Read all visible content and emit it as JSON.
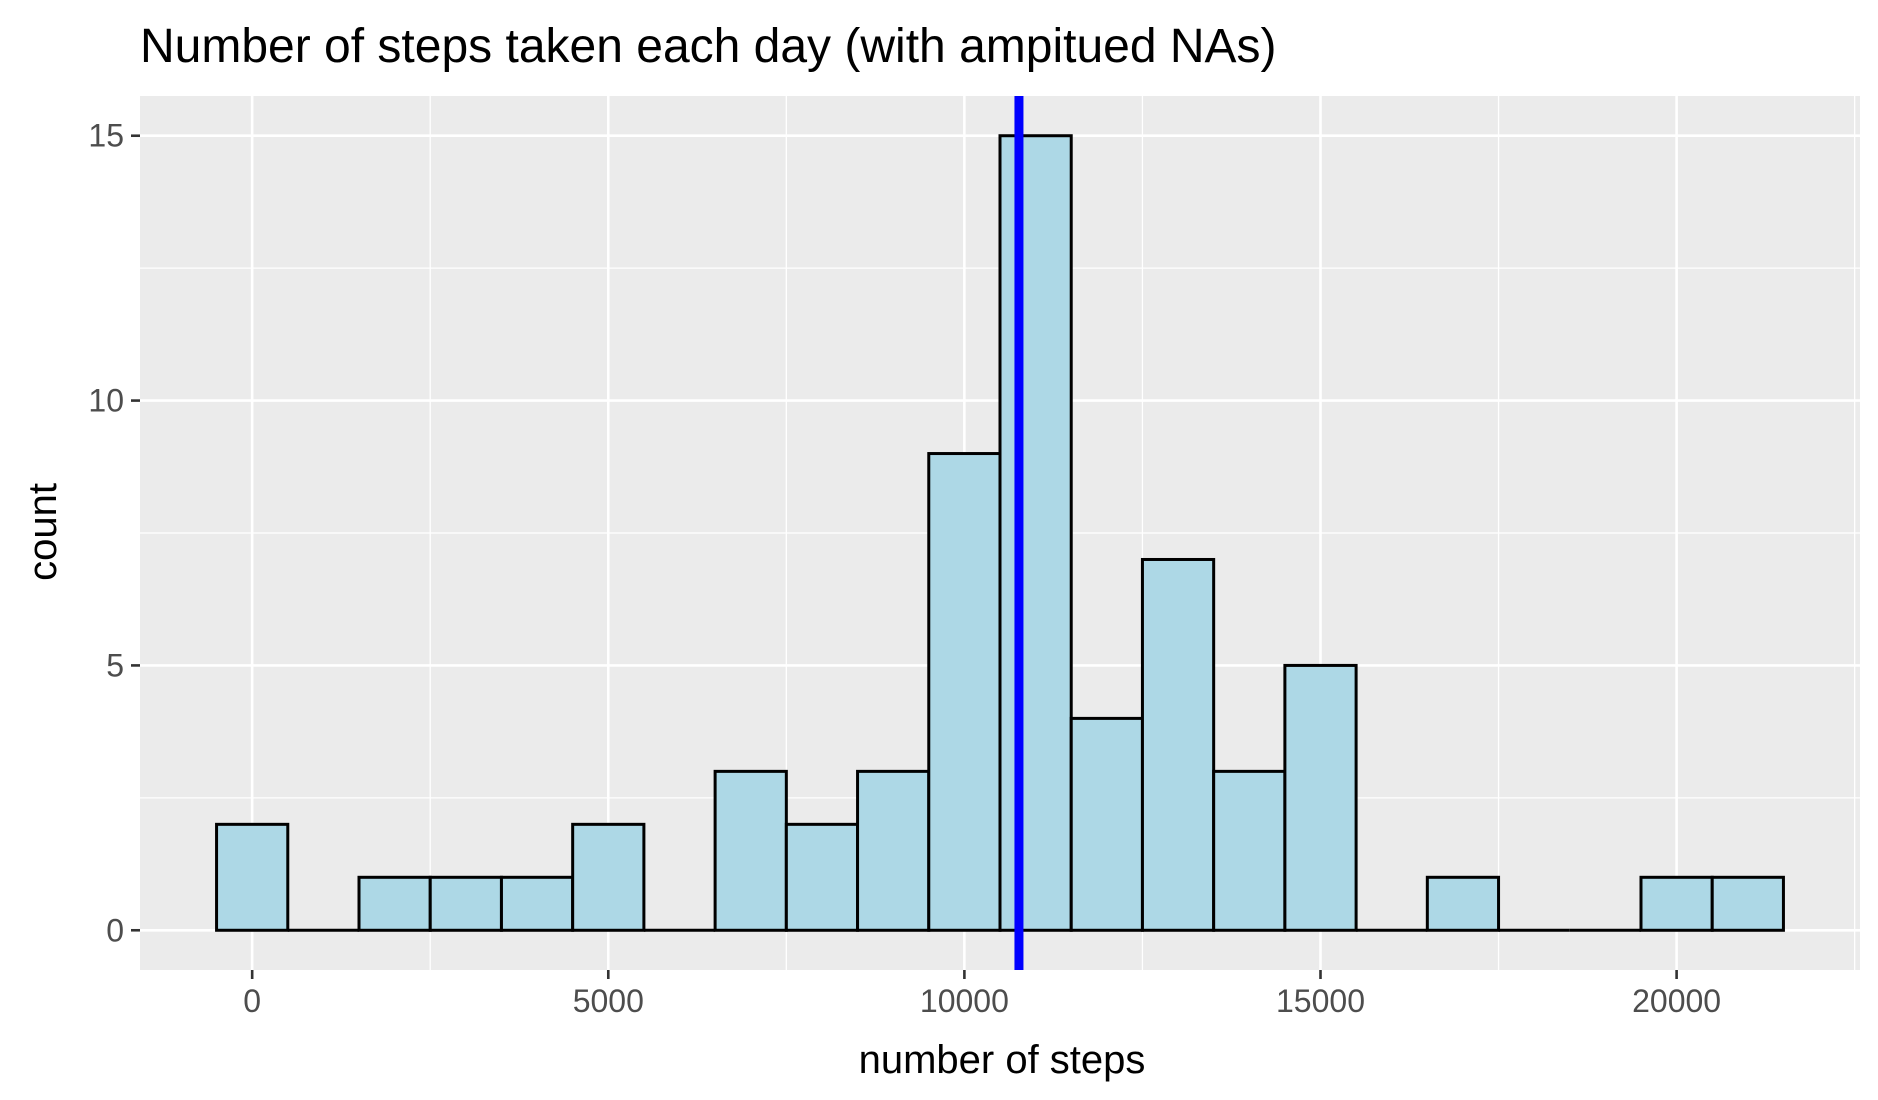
{
  "chart_data": {
    "type": "bar",
    "title": "Number of steps taken each day (with ampitued NAs)",
    "xlabel": "number of steps",
    "ylabel": "count",
    "xlim": [
      -1575,
      22575
    ],
    "ylim": [
      -0.75,
      15.75
    ],
    "x_ticks": [
      0,
      5000,
      10000,
      15000,
      20000
    ],
    "x_tick_labels": [
      "0",
      "5000",
      "10000",
      "15000",
      "20000"
    ],
    "y_ticks": [
      0,
      5,
      10,
      15
    ],
    "y_tick_labels": [
      "0",
      "5",
      "10",
      "15"
    ],
    "grid": true,
    "bin_width": 1000,
    "bin_centers": [
      0,
      1000,
      2000,
      3000,
      4000,
      5000,
      6000,
      7000,
      8000,
      9000,
      10000,
      11000,
      12000,
      13000,
      14000,
      15000,
      16000,
      17000,
      18000,
      19000,
      20000,
      21000
    ],
    "values": [
      2,
      0,
      1,
      1,
      1,
      2,
      0,
      3,
      2,
      3,
      9,
      15,
      4,
      7,
      3,
      5,
      0,
      1,
      0,
      0,
      1,
      1
    ],
    "vline": {
      "x": 10766.19,
      "color": "#0000ff"
    },
    "bar_fill": "#add8e6",
    "bar_stroke": "#000000",
    "panel_background": "#ebebeb",
    "grid_color": "#ffffff"
  }
}
